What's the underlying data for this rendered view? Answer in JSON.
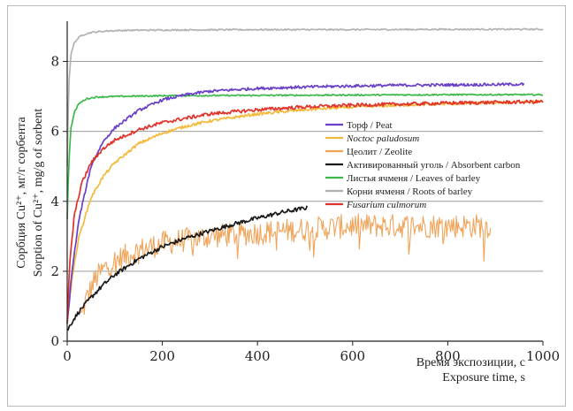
{
  "chart_data": {
    "type": "line",
    "ylabel_lines": [
      "Сорбция Cu²⁺, мг/г сорбента",
      "Sorption of Cu²⁺, mg/g of sorbent"
    ],
    "xlabel_lines": [
      "Время экспозиции, с",
      "Exposure time, s"
    ],
    "xlim": [
      0,
      1000
    ],
    "ylim": [
      0,
      9
    ],
    "xticks": [
      "0",
      "200",
      "400",
      "600",
      "800",
      "1000"
    ],
    "yticks": [
      "0",
      "2",
      "4",
      "6",
      "8"
    ],
    "xtick_values": [
      0,
      200,
      400,
      600,
      800,
      1000
    ],
    "ytick_values": [
      0,
      2,
      4,
      6,
      8
    ],
    "grid": "horizontal",
    "legend_position": "center-right",
    "series": [
      {
        "name": "Торф / Peat",
        "italic": false,
        "color": "#6a3fc8",
        "noise": 0.04,
        "x": [
          0,
          10,
          25,
          50,
          75,
          100,
          150,
          200,
          250,
          300,
          400,
          500,
          600,
          700,
          800,
          900,
          960
        ],
        "y": [
          0.5,
          2.0,
          3.5,
          5.0,
          5.7,
          6.1,
          6.6,
          6.9,
          7.05,
          7.15,
          7.23,
          7.27,
          7.3,
          7.32,
          7.33,
          7.34,
          7.35
        ]
      },
      {
        "name": "Noctoc paludosum",
        "italic": true,
        "color": "#f4b93a",
        "noise": 0.04,
        "x": [
          0,
          10,
          25,
          50,
          75,
          100,
          150,
          200,
          250,
          300,
          400,
          500,
          600,
          700,
          800,
          900,
          1000
        ],
        "y": [
          0.5,
          1.8,
          3.0,
          4.1,
          4.7,
          5.1,
          5.65,
          5.95,
          6.15,
          6.3,
          6.5,
          6.62,
          6.7,
          6.75,
          6.79,
          6.82,
          6.85
        ]
      },
      {
        "name": "Цеолит / Zeolite",
        "italic": false,
        "color": "#f0a45a",
        "noise": 0.35,
        "x": [
          30,
          40,
          60,
          80,
          100,
          150,
          200,
          300,
          400,
          500,
          600,
          700,
          800,
          890
        ],
        "y": [
          0.7,
          1.2,
          1.8,
          2.1,
          2.3,
          2.6,
          2.8,
          3.0,
          3.1,
          3.2,
          3.3,
          3.3,
          3.3,
          3.3
        ]
      },
      {
        "name": "Активированный уголь / Absorbent carbon",
        "italic": false,
        "color": "#1a1a1a",
        "noise": 0.06,
        "x": [
          0,
          10,
          25,
          50,
          75,
          100,
          150,
          200,
          250,
          300,
          350,
          400,
          450,
          505
        ],
        "y": [
          0.3,
          0.55,
          0.85,
          1.25,
          1.6,
          1.9,
          2.35,
          2.7,
          2.95,
          3.15,
          3.35,
          3.52,
          3.68,
          3.82
        ]
      },
      {
        "name": "Листья ячменя / Leaves of barley",
        "italic": false,
        "color": "#3cb84a",
        "noise": 0.02,
        "x": [
          0,
          3,
          8,
          15,
          25,
          40,
          60,
          100,
          200,
          400,
          600,
          800,
          1000
        ],
        "y": [
          3.5,
          5.0,
          6.1,
          6.55,
          6.8,
          6.93,
          6.98,
          7.0,
          7.02,
          7.03,
          7.04,
          7.05,
          7.05
        ]
      },
      {
        "name": "Корни ячменя / Roots of barley",
        "italic": false,
        "color": "#b3b3b3",
        "noise": 0.02,
        "x": [
          0,
          3,
          8,
          15,
          30,
          50,
          80,
          120,
          200,
          400,
          600,
          800,
          1000
        ],
        "y": [
          5.0,
          7.3,
          8.2,
          8.55,
          8.75,
          8.83,
          8.87,
          8.89,
          8.9,
          8.91,
          8.91,
          8.92,
          8.92
        ]
      },
      {
        "name": "Fusarium culmorum",
        "italic": true,
        "color": "#e0332b",
        "noise": 0.05,
        "x": [
          0,
          5,
          15,
          30,
          50,
          75,
          100,
          150,
          200,
          250,
          300,
          400,
          500,
          600,
          700,
          800,
          900,
          1000
        ],
        "y": [
          0.5,
          2.2,
          3.6,
          4.5,
          5.1,
          5.5,
          5.75,
          6.05,
          6.25,
          6.38,
          6.5,
          6.62,
          6.7,
          6.75,
          6.78,
          6.81,
          6.83,
          6.85
        ]
      }
    ]
  }
}
